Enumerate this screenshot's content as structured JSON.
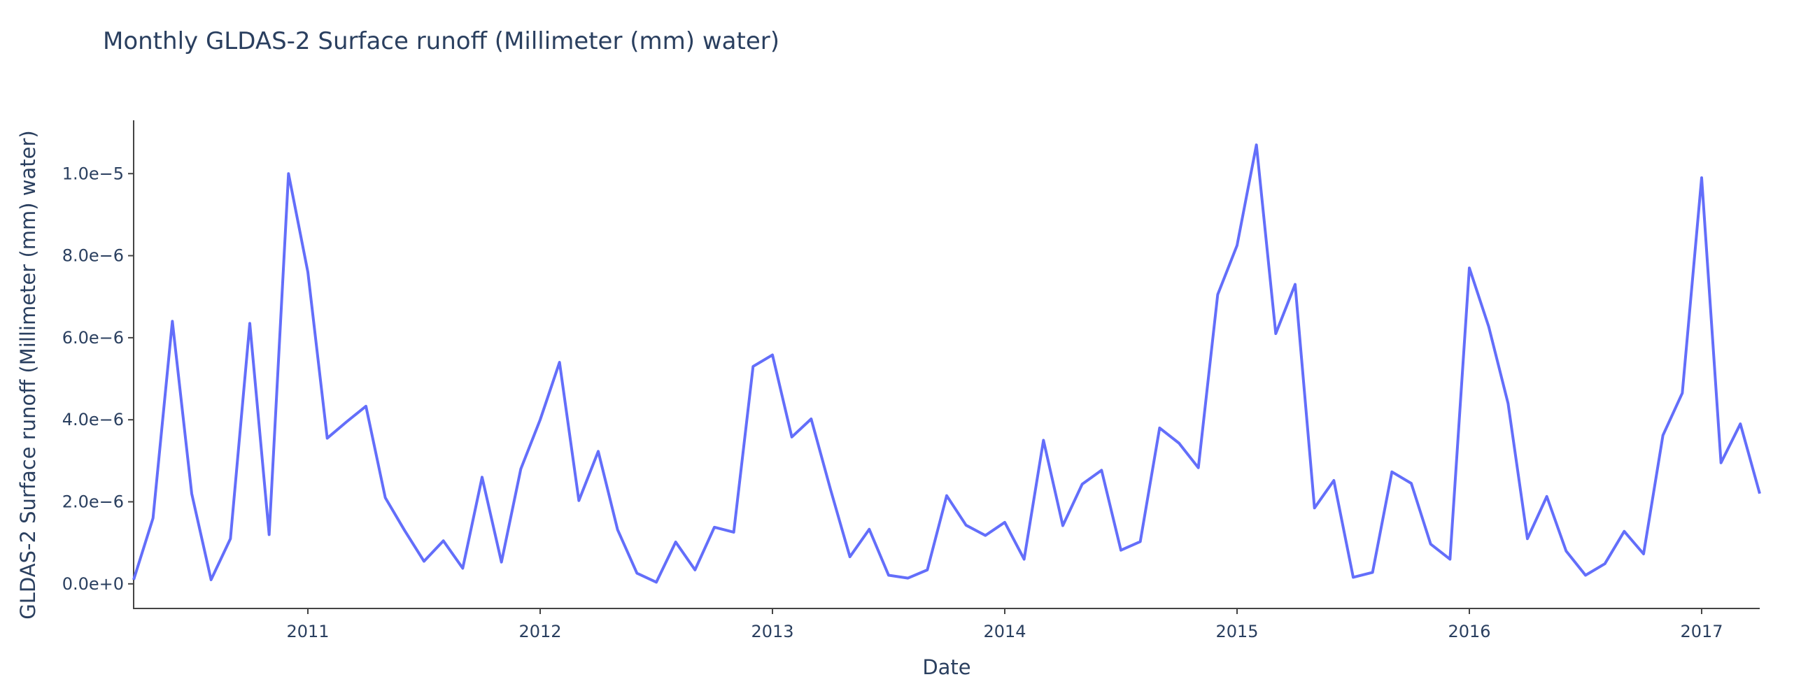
{
  "chart_data": {
    "type": "line",
    "title": "Monthly GLDAS-2 Surface runoff (Millimeter (mm) water)",
    "xlabel": "Date",
    "ylabel": "GLDAS-2 Surface runoff (Millimeter (mm) water)",
    "x_tick_labels": [
      "2011",
      "2012",
      "2013",
      "2014",
      "2015",
      "2016",
      "2017"
    ],
    "y_tick_labels": [
      "0.0e+0",
      "2.0e−6",
      "4.0e−6",
      "6.0e−6",
      "8.0e−6",
      "1.0e−5"
    ],
    "y_tick_values": [
      0,
      2e-06,
      4e-06,
      6e-06,
      8e-06,
      1e-05
    ],
    "xlim": [
      "2010-04-01",
      "2017-04-01"
    ],
    "ylim": [
      -6e-07,
      1.13e-05
    ],
    "grid": false,
    "line_color": "#636efa",
    "series": [
      {
        "x": [
          "2010-04",
          "2010-05",
          "2010-06",
          "2010-07",
          "2010-08",
          "2010-09",
          "2010-10",
          "2010-11",
          "2010-12",
          "2011-01",
          "2011-02",
          "2011-03",
          "2011-04",
          "2011-05",
          "2011-06",
          "2011-07",
          "2011-08",
          "2011-09",
          "2011-10",
          "2011-11",
          "2011-12",
          "2012-01",
          "2012-02",
          "2012-03",
          "2012-04",
          "2012-05",
          "2012-06",
          "2012-07",
          "2012-08",
          "2012-09",
          "2012-10",
          "2012-11",
          "2012-12",
          "2013-01",
          "2013-02",
          "2013-03",
          "2013-04",
          "2013-05",
          "2013-06",
          "2013-07",
          "2013-08",
          "2013-09",
          "2013-10",
          "2013-11",
          "2013-12",
          "2014-01",
          "2014-02",
          "2014-03",
          "2014-04",
          "2014-05",
          "2014-06",
          "2014-07",
          "2014-08",
          "2014-09",
          "2014-10",
          "2014-11",
          "2014-12",
          "2015-01",
          "2015-02",
          "2015-03",
          "2015-04",
          "2015-05",
          "2015-06",
          "2015-07",
          "2015-08",
          "2015-09",
          "2015-10",
          "2015-11",
          "2015-12",
          "2016-01",
          "2016-02",
          "2016-03",
          "2016-04",
          "2016-05",
          "2016-06",
          "2016-07",
          "2016-08",
          "2016-09",
          "2016-10",
          "2016-11",
          "2016-12",
          "2017-01",
          "2017-02",
          "2017-03",
          "2017-04"
        ],
        "values": [
          1e-07,
          1.6e-06,
          6.4e-06,
          2.2e-06,
          1e-07,
          1.1e-06,
          6.35e-06,
          1.2e-06,
          1e-05,
          7.6e-06,
          3.55e-06,
          3.95e-06,
          4.33e-06,
          2.1e-06,
          1.3e-06,
          5.5e-07,
          1.05e-06,
          3.8e-07,
          2.6e-06,
          5.3e-07,
          2.8e-06,
          4e-06,
          5.4e-06,
          2.03e-06,
          3.23e-06,
          1.32e-06,
          2.6e-07,
          4e-08,
          1.02e-06,
          3.4e-07,
          1.38e-06,
          1.26e-06,
          5.3e-06,
          5.58e-06,
          3.58e-06,
          4.02e-06,
          2.3e-06,
          6.6e-07,
          1.33e-06,
          2.1e-07,
          1.4e-07,
          3.4e-07,
          2.15e-06,
          1.43e-06,
          1.18e-06,
          1.5e-06,
          6e-07,
          3.5e-06,
          1.42e-06,
          2.43e-06,
          2.77e-06,
          8.2e-07,
          1.03e-06,
          3.8e-06,
          3.43e-06,
          2.83e-06,
          7.05e-06,
          8.25e-06,
          1.07e-05,
          6.1e-06,
          7.3e-06,
          1.85e-06,
          2.52e-06,
          1.6e-07,
          2.8e-07,
          2.73e-06,
          2.45e-06,
          9.7e-07,
          6e-07,
          7.7e-06,
          6.27e-06,
          4.4e-06,
          1.1e-06,
          2.13e-06,
          8e-07,
          2.1e-07,
          4.9e-07,
          1.28e-06,
          7.3e-07,
          3.62e-06,
          4.65e-06,
          9.9e-06,
          2.95e-06,
          3.9e-06,
          2.2e-06
        ]
      }
    ]
  }
}
